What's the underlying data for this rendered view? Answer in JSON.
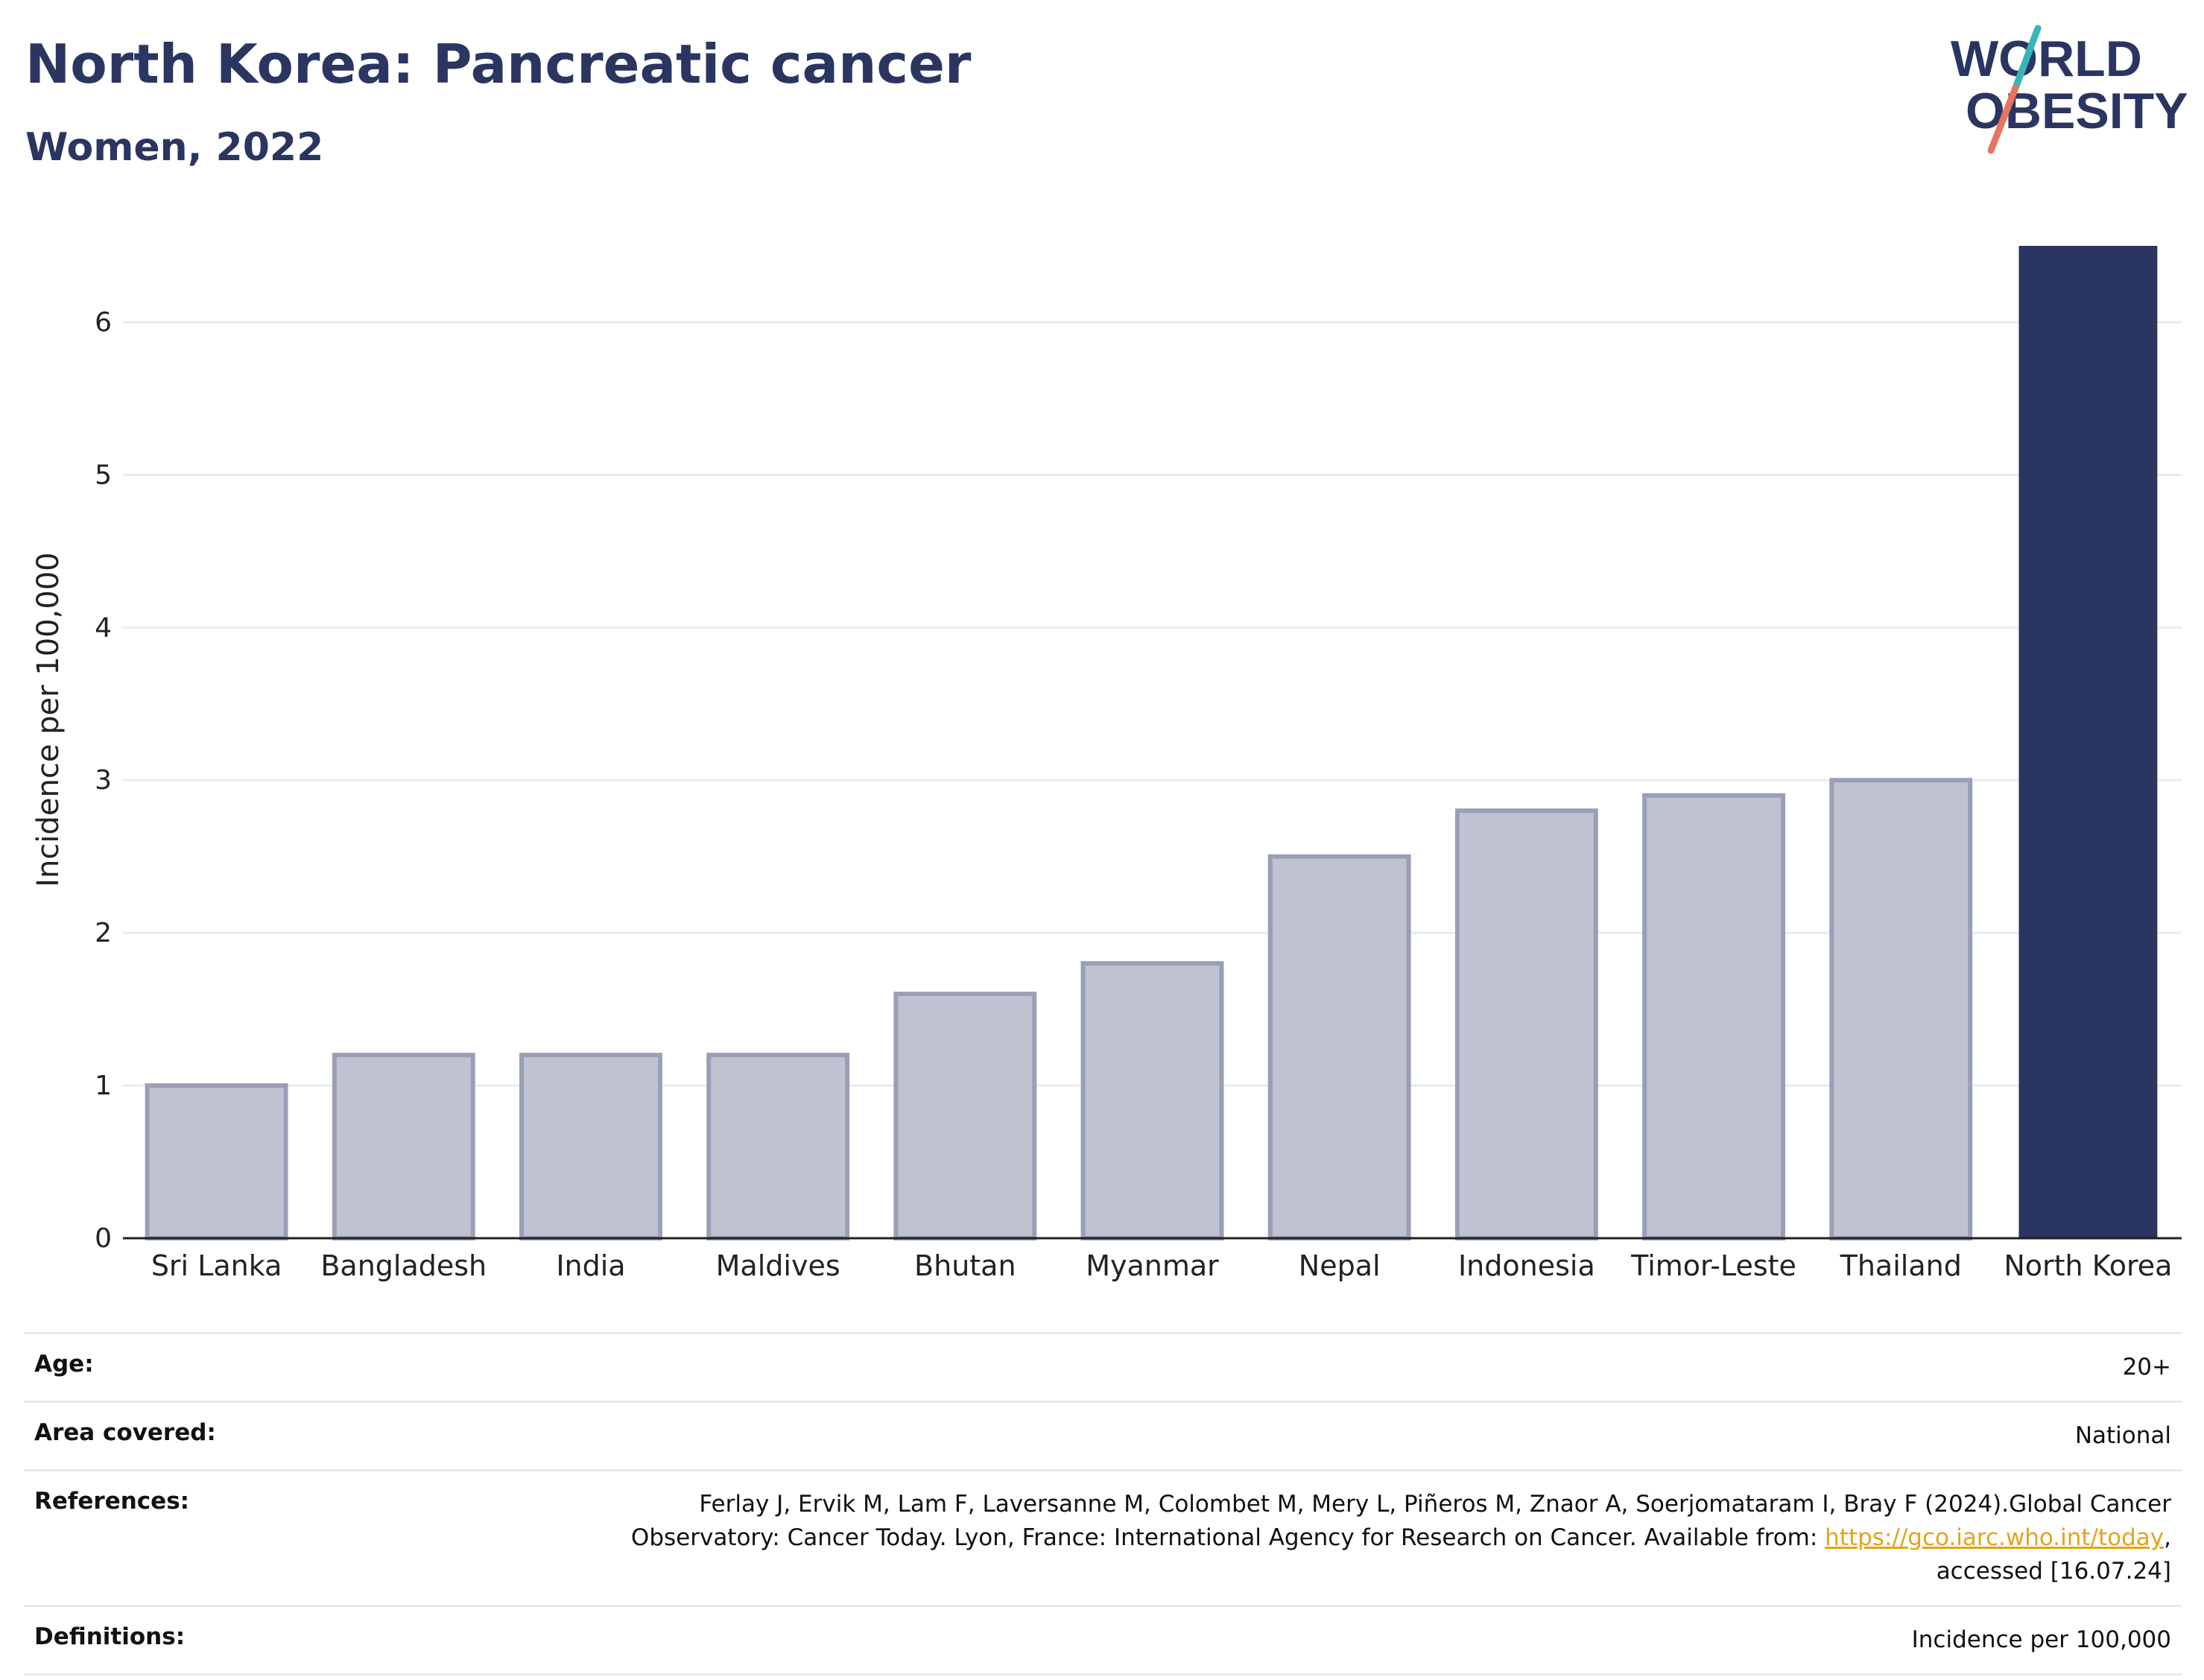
{
  "header": {
    "title": "North Korea: Pancreatic cancer",
    "subtitle": "Women, 2022"
  },
  "logo": {
    "line1": "WORLD",
    "line2": "OBESITY",
    "slash_colors": [
      "#39b5b8",
      "#e8735f"
    ]
  },
  "colors": {
    "highlight_bar": "#2b3561",
    "other_bars": "#bfc2d0",
    "other_bars_border": "#9a9fb6",
    "gridline": "#e6edf3",
    "text_dark": "#2b3561",
    "link": "#e3a41a"
  },
  "chart_data": {
    "type": "bar",
    "ylabel": "Incidence per 100,000",
    "ylim": [
      0,
      6.5
    ],
    "yticks": [
      0,
      1,
      2,
      3,
      4,
      5,
      6
    ],
    "grid": true,
    "categories": [
      "Sri Lanka",
      "Bangladesh",
      "India",
      "Maldives",
      "Bhutan",
      "Myanmar",
      "Nepal",
      "Indonesia",
      "Timor-Leste",
      "Thailand",
      "North Korea"
    ],
    "values": [
      1.0,
      1.2,
      1.2,
      1.2,
      1.6,
      1.8,
      2.5,
      2.8,
      2.9,
      3.0,
      6.5
    ],
    "highlight": "North Korea"
  },
  "meta": {
    "age_label": "Age:",
    "age_value": "20+",
    "area_label": "Area covered:",
    "area_value": "National",
    "references_label": "References:",
    "references_line1": "Ferlay J, Ervik M, Lam F, Laversanne M, Colombet M, Mery L, Piñeros M, Znaor A, Soerjomataram I, Bray F (2024).Global Cancer",
    "references_line2_pre": "Observatory: Cancer Today. Lyon, France: International Agency for Research on Cancer. Available from: ",
    "references_link": "https://gco.iarc.who.int/today",
    "references_line2_post": ",",
    "references_line3": "accessed [16.07.24]",
    "definitions_label": "Definitions:",
    "definitions_value": "Incidence per 100,000"
  }
}
